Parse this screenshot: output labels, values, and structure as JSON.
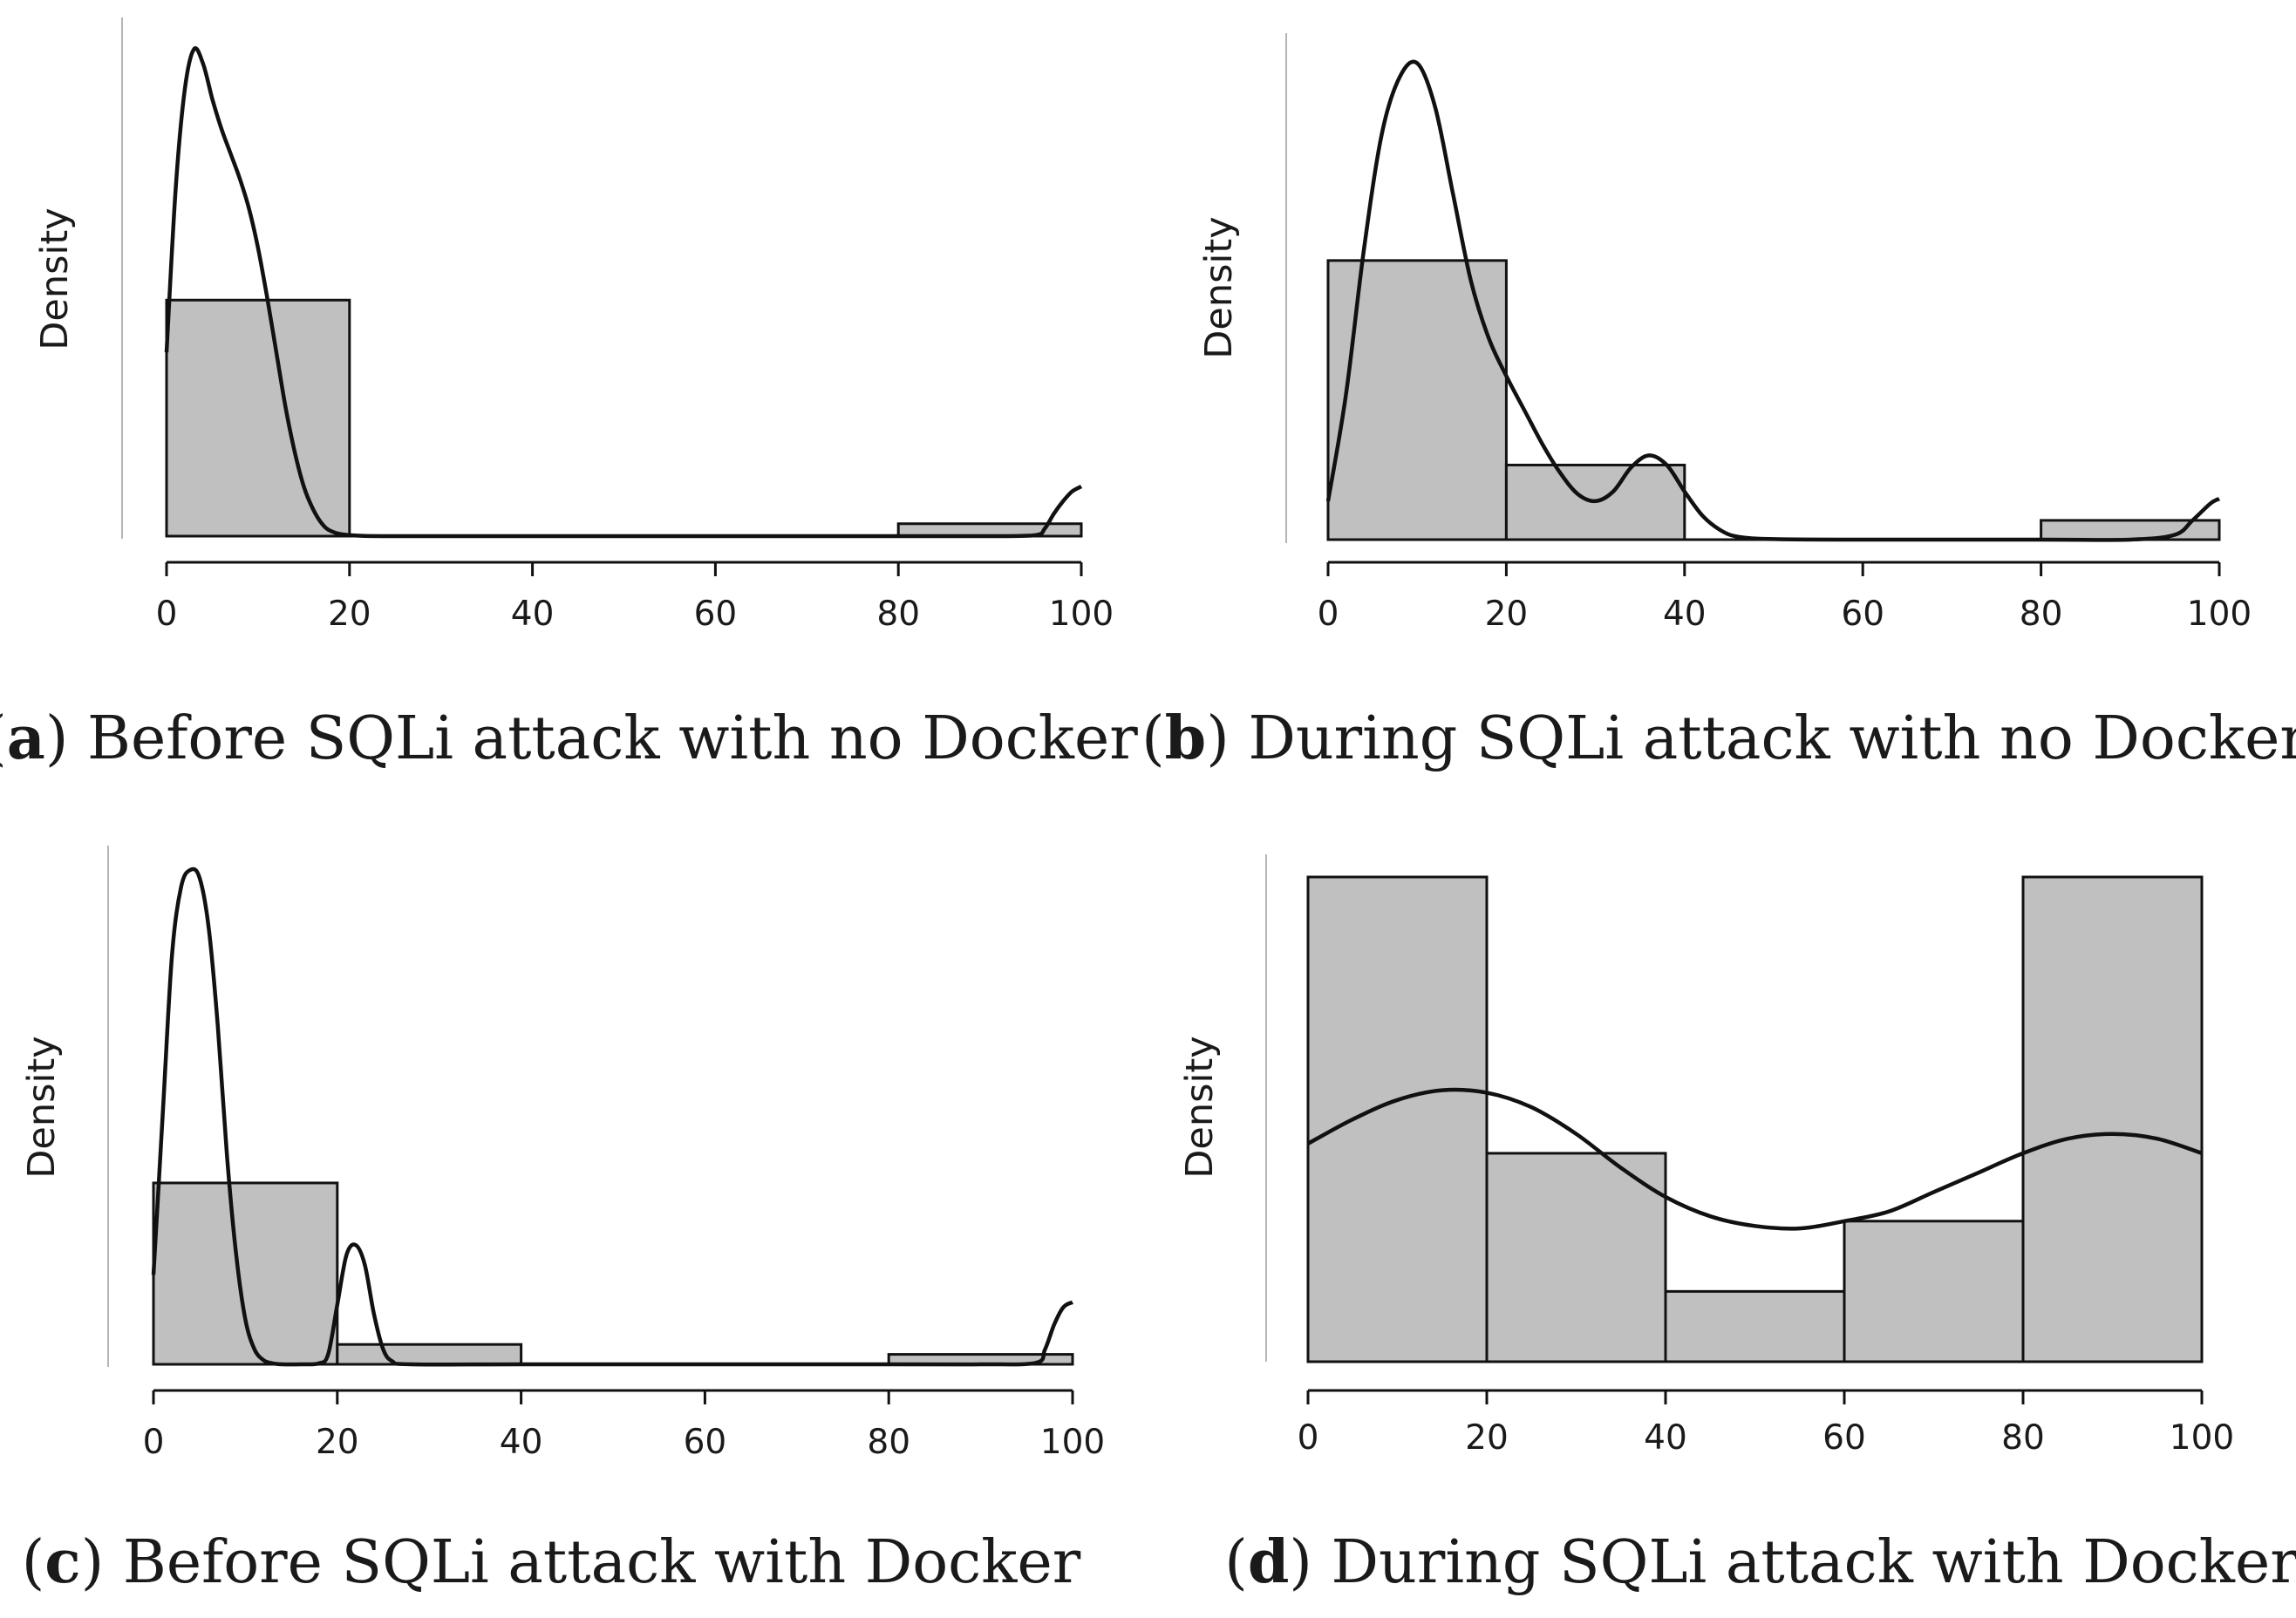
{
  "chart_data": [
    {
      "type": "bar",
      "subplot": "a",
      "caption_letter": "a",
      "caption_text": "Before SQLi attack with no Docker",
      "xlabel": "",
      "ylabel": "Density",
      "xlim": [
        0,
        100
      ],
      "ylim": [
        0,
        1
      ],
      "bin_edges": [
        0,
        20,
        40,
        60,
        80,
        100
      ],
      "xticks": [
        0,
        20,
        40,
        60,
        80,
        100
      ],
      "values": [
        0.475,
        0,
        0,
        0,
        0.025
      ],
      "density_curve": {
        "x": [
          0,
          1,
          2,
          3,
          4,
          5,
          6,
          7,
          8,
          9,
          10,
          11,
          12,
          13,
          14,
          15,
          16,
          17,
          18,
          20,
          25,
          40,
          60,
          80,
          90,
          95,
          96,
          97,
          98,
          99,
          100
        ],
        "y": [
          0.37,
          0.7,
          0.9,
          0.98,
          0.95,
          0.88,
          0.82,
          0.77,
          0.72,
          0.66,
          0.58,
          0.48,
          0.37,
          0.26,
          0.17,
          0.1,
          0.055,
          0.025,
          0.01,
          0.002,
          0,
          0,
          0,
          0,
          0,
          0.002,
          0.015,
          0.045,
          0.07,
          0.09,
          0.1
        ]
      }
    },
    {
      "type": "bar",
      "subplot": "b",
      "caption_letter": "b",
      "caption_text": "During SQLi attack with no Docker",
      "xlabel": "",
      "ylabel": "Density",
      "xlim": [
        0,
        100
      ],
      "ylim": [
        0,
        1
      ],
      "bin_edges": [
        0,
        20,
        40,
        60,
        80,
        100
      ],
      "xticks": [
        0,
        20,
        40,
        60,
        80,
        100
      ],
      "values": [
        0.58,
        0.155,
        0,
        0,
        0.04
      ],
      "density_curve": {
        "x": [
          0,
          2,
          4,
          6,
          8,
          10,
          12,
          14,
          16,
          18,
          20,
          22,
          24,
          26,
          28,
          30,
          32,
          34,
          36,
          38,
          40,
          42,
          44,
          46,
          50,
          60,
          80,
          90,
          95,
          97,
          99,
          100
        ],
        "y": [
          0.08,
          0.3,
          0.6,
          0.84,
          0.96,
          0.99,
          0.9,
          0.72,
          0.54,
          0.42,
          0.34,
          0.27,
          0.2,
          0.14,
          0.095,
          0.08,
          0.1,
          0.15,
          0.175,
          0.155,
          0.1,
          0.05,
          0.02,
          0.006,
          0.001,
          0,
          0,
          0,
          0.01,
          0.04,
          0.075,
          0.085
        ]
      }
    },
    {
      "type": "bar",
      "subplot": "c",
      "caption_letter": "c",
      "caption_text": "Before SQLi attack with Docker",
      "xlabel": "",
      "ylabel": "Density",
      "xlim": [
        0,
        100
      ],
      "ylim": [
        0,
        1
      ],
      "bin_edges": [
        0,
        20,
        40,
        60,
        80,
        100
      ],
      "xticks": [
        0,
        20,
        40,
        60,
        80,
        100
      ],
      "values": [
        0.365,
        0.04,
        0,
        0,
        0.02
      ],
      "density_curve": {
        "x": [
          0,
          1,
          2,
          3,
          4,
          5,
          6,
          7,
          8,
          9,
          10,
          11,
          12,
          13,
          14,
          16,
          18,
          19,
          20,
          21,
          22,
          23,
          24,
          25,
          26,
          28,
          40,
          60,
          80,
          90,
          96,
          97,
          98,
          99,
          100
        ],
        "y": [
          0.18,
          0.5,
          0.82,
          0.96,
          0.995,
          0.98,
          0.88,
          0.68,
          0.42,
          0.22,
          0.09,
          0.03,
          0.008,
          0.002,
          0,
          0,
          0.002,
          0.02,
          0.12,
          0.22,
          0.24,
          0.2,
          0.1,
          0.03,
          0.006,
          0,
          0,
          0,
          0,
          0,
          0.003,
          0.03,
          0.08,
          0.115,
          0.125
        ]
      }
    },
    {
      "type": "bar",
      "subplot": "d",
      "caption_letter": "d",
      "caption_text": "During SQLi attack with Docker",
      "xlabel": "",
      "ylabel": "Density",
      "xlim": [
        0,
        100
      ],
      "ylim": [
        0,
        1
      ],
      "bin_edges": [
        0,
        20,
        40,
        60,
        80,
        100
      ],
      "xticks": [
        0,
        20,
        40,
        60,
        80,
        100
      ],
      "values": [
        1.0,
        0.43,
        0.145,
        0.29,
        1.0
      ],
      "density_curve": {
        "x": [
          0,
          5,
          10,
          15,
          20,
          25,
          30,
          35,
          40,
          45,
          50,
          55,
          60,
          65,
          70,
          75,
          80,
          85,
          90,
          95,
          100
        ],
        "y": [
          0.45,
          0.5,
          0.54,
          0.56,
          0.555,
          0.525,
          0.47,
          0.4,
          0.34,
          0.3,
          0.28,
          0.275,
          0.29,
          0.31,
          0.35,
          0.39,
          0.43,
          0.46,
          0.47,
          0.46,
          0.43
        ]
      }
    }
  ]
}
